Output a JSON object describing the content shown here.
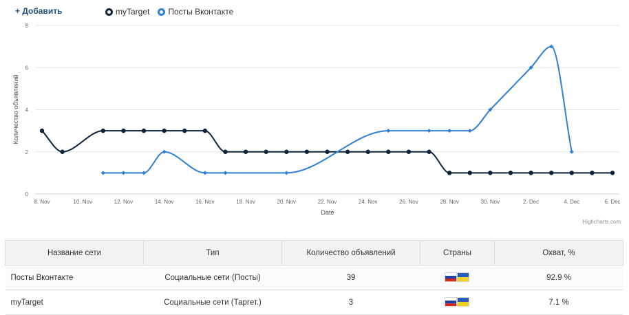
{
  "toolbar": {
    "add_label": "+ Добавить"
  },
  "credits": "Highcharts.com",
  "chart_data": {
    "type": "line",
    "xlabel": "Date",
    "ylabel": "Количество объявлений",
    "ylim": [
      0,
      8
    ],
    "yticks": [
      0,
      2,
      4,
      6,
      8
    ],
    "grid": true,
    "legend_position": "top-left",
    "x": [
      "8. Nov",
      "9. Nov",
      "10. Nov",
      "11. Nov",
      "12. Nov",
      "13. Nov",
      "14. Nov",
      "15. Nov",
      "16. Nov",
      "17. Nov",
      "18. Nov",
      "19. Nov",
      "20. Nov",
      "21. Nov",
      "22. Nov",
      "23. Nov",
      "24. Nov",
      "25. Nov",
      "26. Nov",
      "27. Nov",
      "28. Nov",
      "29. Nov",
      "30. Nov",
      "1. Dec",
      "2. Dec",
      "3. Dec",
      "4. Dec",
      "5. Dec",
      "6. Dec"
    ],
    "xtick_labels": [
      "8. Nov",
      "10. Nov",
      "12. Nov",
      "14. Nov",
      "16. Nov",
      "18. Nov",
      "20. Nov",
      "22. Nov",
      "24. Nov",
      "26. Nov",
      "28. Nov",
      "30. Nov",
      "2. Dec",
      "4. Dec",
      "6. Dec"
    ],
    "series": [
      {
        "name": "myTarget",
        "color": "#0d233a",
        "marker": "circle",
        "values": [
          3,
          2,
          null,
          3,
          3,
          3,
          3,
          3,
          3,
          2,
          2,
          2,
          2,
          2,
          2,
          2,
          2,
          2,
          2,
          2,
          1,
          1,
          1,
          1,
          1,
          1,
          1,
          1,
          1
        ]
      },
      {
        "name": "Посты Вконтакте",
        "color": "#2f7ed8",
        "marker": "diamond",
        "values": [
          null,
          null,
          null,
          1,
          1,
          1,
          2,
          null,
          1,
          1,
          null,
          null,
          1,
          null,
          null,
          null,
          null,
          3,
          null,
          3,
          3,
          3,
          4,
          null,
          6,
          7,
          2,
          null,
          null
        ]
      }
    ]
  },
  "table": {
    "headers": [
      "Название сети",
      "Тип",
      "Количество объявлений",
      "Страны",
      "Охват, %"
    ],
    "rows": [
      {
        "name": "Посты Вконтакте",
        "type": "Социальные сети (Посты)",
        "count": "39",
        "reach": "92.9 %"
      },
      {
        "name": "myTarget",
        "type": "Социальные сети (Таргет.)",
        "count": "3",
        "reach": "7.1 %"
      }
    ]
  },
  "flags": [
    "ru-flag-icon",
    "ua-flag-icon"
  ]
}
